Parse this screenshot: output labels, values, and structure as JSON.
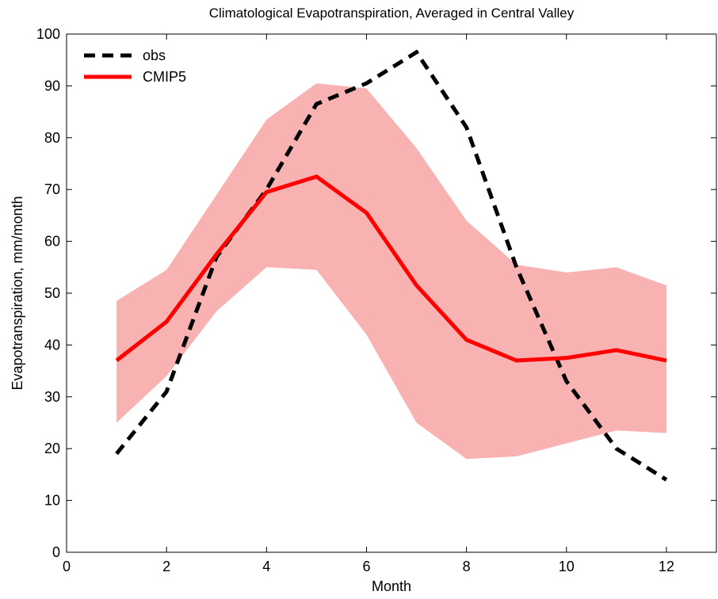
{
  "chart_data": {
    "type": "line",
    "title": "Climatological Evapotranspiration, Averaged in Central Valley",
    "x_label": "Month",
    "y_label": "Evapotranspiration, mm/month",
    "x": [
      1,
      2,
      3,
      4,
      5,
      6,
      7,
      8,
      9,
      10,
      11,
      12
    ],
    "series": [
      {
        "name": "obs",
        "color": "#000000",
        "dashed": true,
        "values": [
          19,
          31,
          57,
          70,
          86.5,
          90.5,
          96.5,
          82,
          55,
          33,
          20,
          14
        ]
      },
      {
        "name": "CMIP5",
        "color": "#ff0000",
        "dashed": false,
        "values": [
          37,
          44.5,
          57.5,
          69.5,
          72.5,
          65.5,
          51.5,
          41,
          37,
          37.5,
          39,
          37
        ]
      }
    ],
    "band": {
      "color": "#f9b2b2",
      "upper": [
        48.5,
        54.5,
        69,
        83.5,
        90.5,
        89.5,
        78,
        64,
        55.5,
        54,
        55,
        51.5
      ],
      "lower": [
        25,
        34,
        46.5,
        55,
        54.5,
        42,
        25,
        18,
        18.5,
        21,
        23.5,
        23
      ]
    },
    "xlim": [
      0,
      13
    ],
    "xticks": [
      0,
      2,
      4,
      6,
      8,
      10,
      12
    ],
    "ylim": [
      0,
      100
    ],
    "yticks": [
      0,
      10,
      20,
      30,
      40,
      50,
      60,
      70,
      80,
      90,
      100
    ],
    "legend": "upper-left"
  }
}
